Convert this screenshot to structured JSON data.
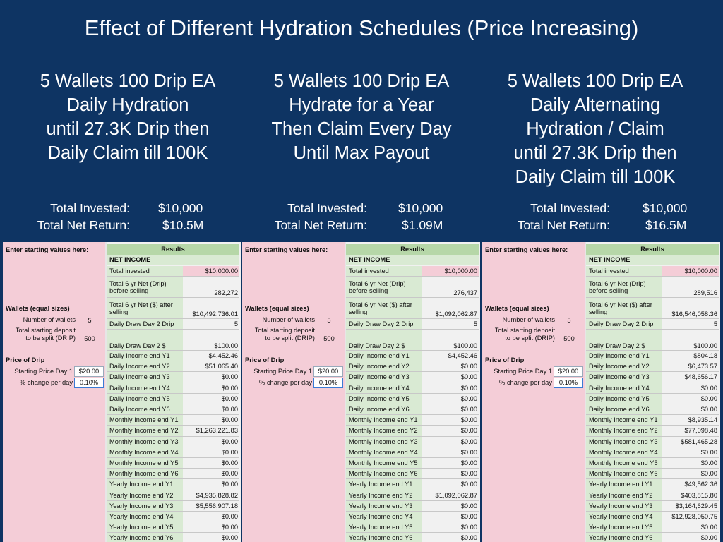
{
  "title": "Effect of Different Hydration Schedules (Price Increasing)",
  "columns": [
    {
      "heading": "5 Wallets 100 Drip EA\nDaily Hydration\nuntil 27.3K Drip then\nDaily Claim till 100K",
      "total_invested_label": "Total Invested:",
      "total_invested": "$10,000",
      "net_return_label": "Total Net Return:",
      "net_return": "$10.5M",
      "sheet": {
        "enter_label": "Enter starting values here:",
        "results_label": "Results",
        "net_income_label": "NET INCOME",
        "wallets_label": "Wallets (equal sizes)",
        "num_wallets_label": "Number of wallets",
        "num_wallets": "5",
        "deposit_label_1": "Total starting deposit",
        "deposit_label_2": "to be split (DRIP)",
        "deposit": "500",
        "price_label": "Price of Drip",
        "start_price_label": "Starting Price Day 1",
        "start_price": "$20.00",
        "pct_change_label": "% change per day",
        "pct_change": "0.10%",
        "rows": [
          {
            "k": "Total invested",
            "v": "$10,000.00"
          },
          {
            "k": "Total 6 yr Net (Drip) before selling",
            "v": "282,272"
          },
          {
            "k": "Total 6 yr Net ($) after selling",
            "v": "$10,492,736.01"
          },
          {
            "k": "Daily Draw Day 2 Drip",
            "v": "5"
          },
          {
            "k": "Daily Draw Day 2 $",
            "v": "$100.00"
          },
          {
            "k": "Daily Income end Y1",
            "v": "$4,452.46"
          },
          {
            "k": "Daily Income end Y2",
            "v": "$51,065.40"
          },
          {
            "k": "Daily Income end Y3",
            "v": "$0.00"
          },
          {
            "k": "Daily Income end Y4",
            "v": "$0.00"
          },
          {
            "k": "Daily Income end Y5",
            "v": "$0.00"
          },
          {
            "k": "Daily Income end Y6",
            "v": "$0.00"
          },
          {
            "k": "Monthly Income end Y1",
            "v": "$0.00"
          },
          {
            "k": "Monthly Income end Y2",
            "v": "$1,263,221.83"
          },
          {
            "k": "Monthly Income end Y3",
            "v": "$0.00"
          },
          {
            "k": "Monthly Income end Y4",
            "v": "$0.00"
          },
          {
            "k": "Monthly Income end Y5",
            "v": "$0.00"
          },
          {
            "k": "Monthly Income end Y6",
            "v": "$0.00"
          },
          {
            "k": "Yearly Income end Y1",
            "v": "$0.00"
          },
          {
            "k": "Yearly Income end Y2",
            "v": "$4,935,828.82"
          },
          {
            "k": "Yearly Income end Y3",
            "v": "$5,556,907.18"
          },
          {
            "k": "Yearly Income end Y4",
            "v": "$0.00"
          },
          {
            "k": "Yearly Income end Y5",
            "v": "$0.00"
          },
          {
            "k": "Yearly Income end Y6",
            "v": "$0.00"
          }
        ]
      }
    },
    {
      "heading": "5 Wallets 100 Drip EA\nHydrate for a Year\nThen Claim Every Day\nUntil Max Payout",
      "total_invested_label": "Total Invested:",
      "total_invested": "$10,000",
      "net_return_label": "Total Net Return:",
      "net_return": "$1.09M",
      "sheet": {
        "enter_label": "Enter starting values here:",
        "results_label": "Results",
        "net_income_label": "NET INCOME",
        "wallets_label": "Wallets (equal sizes)",
        "num_wallets_label": "Number of wallets",
        "num_wallets": "5",
        "deposit_label_1": "Total starting deposit",
        "deposit_label_2": "to be split (DRIP)",
        "deposit": "500",
        "price_label": "Price of Drip",
        "start_price_label": "Starting Price Day 1",
        "start_price": "$20.00",
        "pct_change_label": "% change per day",
        "pct_change": "0.10%",
        "rows": [
          {
            "k": "Total invested",
            "v": "$10,000.00"
          },
          {
            "k": "Total 6 yr Net (Drip) before selling",
            "v": "276,437"
          },
          {
            "k": "Total 6 yr Net ($) after selling",
            "v": "$1,092,062.87"
          },
          {
            "k": "Daily Draw Day 2 Drip",
            "v": "5"
          },
          {
            "k": "Daily Draw Day 2 $",
            "v": "$100.00"
          },
          {
            "k": "Daily Income end Y1",
            "v": "$4,452.46"
          },
          {
            "k": "Daily Income end Y2",
            "v": "$0.00"
          },
          {
            "k": "Daily Income end Y3",
            "v": "$0.00"
          },
          {
            "k": "Daily Income end Y4",
            "v": "$0.00"
          },
          {
            "k": "Daily Income end Y5",
            "v": "$0.00"
          },
          {
            "k": "Daily Income end Y6",
            "v": "$0.00"
          },
          {
            "k": "Monthly Income end Y1",
            "v": "$0.00"
          },
          {
            "k": "Monthly Income end Y2",
            "v": "$0.00"
          },
          {
            "k": "Monthly Income end Y3",
            "v": "$0.00"
          },
          {
            "k": "Monthly Income end Y4",
            "v": "$0.00"
          },
          {
            "k": "Monthly Income end Y5",
            "v": "$0.00"
          },
          {
            "k": "Monthly Income end Y6",
            "v": "$0.00"
          },
          {
            "k": "Yearly Income end Y1",
            "v": "$0.00"
          },
          {
            "k": "Yearly Income end Y2",
            "v": "$1,092,062.87"
          },
          {
            "k": "Yearly Income end Y3",
            "v": "$0.00"
          },
          {
            "k": "Yearly Income end Y4",
            "v": "$0.00"
          },
          {
            "k": "Yearly Income end Y5",
            "v": "$0.00"
          },
          {
            "k": "Yearly Income end Y6",
            "v": "$0.00"
          }
        ]
      }
    },
    {
      "heading": "5 Wallets 100 Drip EA\nDaily Alternating\nHydration / Claim\nuntil 27.3K Drip then\nDaily Claim till 100K",
      "total_invested_label": "Total Invested:",
      "total_invested": "$10,000",
      "net_return_label": "Total Net Return:",
      "net_return": "$16.5M",
      "sheet": {
        "enter_label": "Enter starting values here:",
        "results_label": "Results",
        "net_income_label": "NET INCOME",
        "wallets_label": "Wallets (equal sizes)",
        "num_wallets_label": "Number of wallets",
        "num_wallets": "5",
        "deposit_label_1": "Total starting deposit",
        "deposit_label_2": "to be split (DRIP)",
        "deposit": "500",
        "price_label": "Price of Drip",
        "start_price_label": "Starting Price Day 1",
        "start_price": "$20.00",
        "pct_change_label": "% change per day",
        "pct_change": "0.10%",
        "rows": [
          {
            "k": "Total invested",
            "v": "$10,000.00"
          },
          {
            "k": "Total 6 yr Net (Drip) before selling",
            "v": "289,516"
          },
          {
            "k": "Total 6 yr Net ($) after selling",
            "v": "$16,546,058.36"
          },
          {
            "k": "Daily Draw Day 2 Drip",
            "v": "5"
          },
          {
            "k": "Daily Draw Day 2 $",
            "v": "$100.00"
          },
          {
            "k": "Daily Income end Y1",
            "v": "$804.18"
          },
          {
            "k": "Daily Income end Y2",
            "v": "$6,473.57"
          },
          {
            "k": "Daily Income end Y3",
            "v": "$48,656.17"
          },
          {
            "k": "Daily Income end Y4",
            "v": "$0.00"
          },
          {
            "k": "Daily Income end Y5",
            "v": "$0.00"
          },
          {
            "k": "Daily Income end Y6",
            "v": "$0.00"
          },
          {
            "k": "Monthly Income end Y1",
            "v": "$8,935.14"
          },
          {
            "k": "Monthly Income end Y2",
            "v": "$77,098.48"
          },
          {
            "k": "Monthly Income end Y3",
            "v": "$581,465.28"
          },
          {
            "k": "Monthly Income end Y4",
            "v": "$0.00"
          },
          {
            "k": "Monthly Income end Y5",
            "v": "$0.00"
          },
          {
            "k": "Monthly Income end Y6",
            "v": "$0.00"
          },
          {
            "k": "Yearly Income end Y1",
            "v": "$49,562.36"
          },
          {
            "k": "Yearly Income end Y2",
            "v": "$403,815.80"
          },
          {
            "k": "Yearly Income end Y3",
            "v": "$3,164,629.45"
          },
          {
            "k": "Yearly Income end Y4",
            "v": "$12,928,050.75"
          },
          {
            "k": "Yearly Income end Y5",
            "v": "$0.00"
          },
          {
            "k": "Yearly Income end Y6",
            "v": "$0.00"
          }
        ]
      }
    }
  ]
}
